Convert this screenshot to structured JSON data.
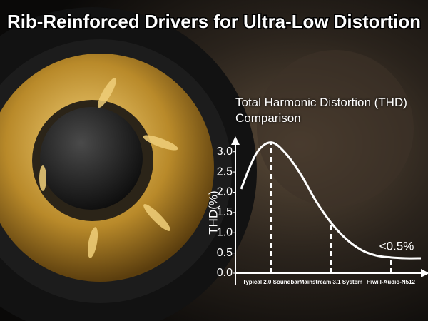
{
  "headline": "Rib-Reinforced Drivers for Ultra-Low Distortion",
  "chart_data": {
    "type": "line",
    "title": "Total Harmonic Distortion (THD) Comparison",
    "y_label": "THD(%)",
    "categories": [
      null,
      null,
      "Typical 2.0 Soundbar",
      null,
      null,
      null,
      "Mainstream 3.1 System",
      null,
      null,
      null,
      "Hiwill-Audio-N512",
      null,
      null
    ],
    "series": [
      {
        "name": "THD",
        "color": "#ffffff",
        "values": [
          2.08,
          2.95,
          3.23,
          2.95,
          2.43,
          1.78,
          1.25,
          0.85,
          0.58,
          0.44,
          0.39,
          0.37,
          0.37
        ]
      }
    ],
    "ylim": [
      0,
      3.4
    ],
    "yticks": [
      {
        "value": 0,
        "label": "0.0"
      },
      0.5,
      {
        "value": 1,
        "label": "1.0"
      },
      1.5,
      {
        "value": 2,
        "label": "2.0"
      },
      2.5,
      {
        "value": 3,
        "label": "3.0"
      }
    ],
    "annotation": "<0.5%",
    "grid": false
  }
}
